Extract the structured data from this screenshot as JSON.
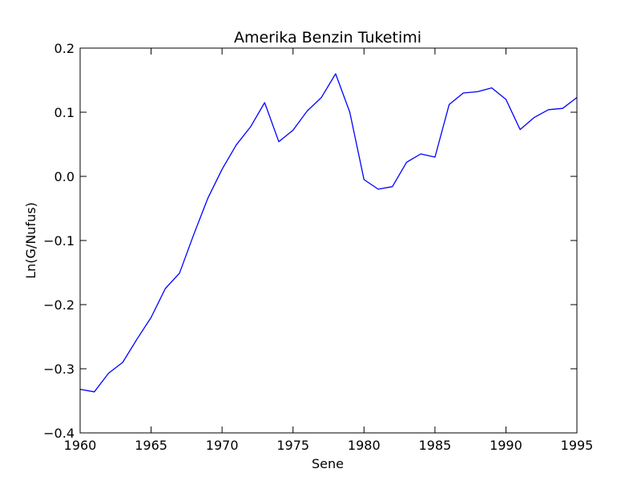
{
  "chart_data": {
    "type": "line",
    "title": "Amerika Benzin Tuketimi",
    "xlabel": "Sene",
    "ylabel": "Ln(G/Nufus)",
    "xlim": [
      1960,
      1995
    ],
    "ylim": [
      -0.4,
      0.2
    ],
    "x_ticks": [
      1960,
      1965,
      1970,
      1975,
      1980,
      1985,
      1990,
      1995
    ],
    "y_ticks": [
      -0.4,
      -0.3,
      -0.2,
      -0.1,
      0.0,
      0.1,
      0.2
    ],
    "x_tick_labels": [
      "1960",
      "1965",
      "1970",
      "1975",
      "1980",
      "1985",
      "1990",
      "1995"
    ],
    "y_tick_labels": [
      "−0.4",
      "−0.3",
      "−0.2",
      "−0.1",
      "0.0",
      "0.1",
      "0.2"
    ],
    "grid": false,
    "series": [
      {
        "color": "#0000ff",
        "x": [
          1960,
          1961,
          1962,
          1963,
          1964,
          1965,
          1966,
          1967,
          1968,
          1969,
          1970,
          1971,
          1972,
          1973,
          1974,
          1975,
          1976,
          1977,
          1978,
          1979,
          1980,
          1981,
          1982,
          1983,
          1984,
          1985,
          1986,
          1987,
          1988,
          1989,
          1990,
          1991,
          1992,
          1993,
          1994,
          1995
        ],
        "y": [
          -0.332,
          -0.336,
          -0.307,
          -0.29,
          -0.254,
          -0.22,
          -0.175,
          -0.151,
          -0.091,
          -0.034,
          0.011,
          0.049,
          0.077,
          0.115,
          0.054,
          0.072,
          0.102,
          0.123,
          0.16,
          0.1,
          -0.005,
          -0.02,
          -0.016,
          0.022,
          0.035,
          0.03,
          0.112,
          0.13,
          0.132,
          0.138,
          0.12,
          0.073,
          0.092,
          0.104,
          0.106,
          0.123
        ]
      }
    ]
  }
}
